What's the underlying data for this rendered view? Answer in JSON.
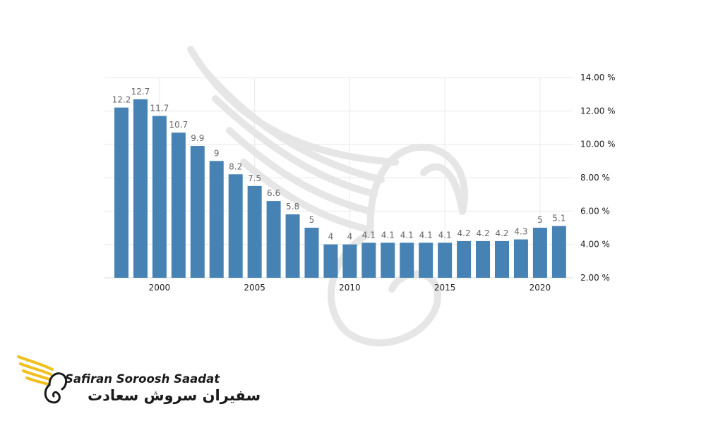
{
  "chart_data": {
    "type": "bar",
    "x": [
      1998,
      1999,
      2000,
      2001,
      2002,
      2003,
      2004,
      2005,
      2006,
      2007,
      2008,
      2009,
      2010,
      2011,
      2012,
      2013,
      2014,
      2015,
      2016,
      2017,
      2018,
      2019,
      2020,
      2021
    ],
    "values": [
      12.2,
      12.7,
      11.7,
      10.7,
      9.9,
      9,
      8.2,
      7.5,
      6.6,
      5.8,
      5,
      4,
      4,
      4.1,
      4.1,
      4.1,
      4.1,
      4.1,
      4.2,
      4.2,
      4.2,
      4.3,
      5,
      5.1
    ],
    "data_labels": [
      "12.2",
      "12.7",
      "11.7",
      "10.7",
      "9.9",
      "9",
      "8.2",
      "7.5",
      "6.6",
      "5.8",
      "5",
      "4",
      "4",
      "4.1",
      "4.1",
      "4.1",
      "4.1",
      "4.1",
      "4.2",
      "4.2",
      "4.2",
      "4.3",
      "5",
      "5.1"
    ],
    "x_ticks": [
      {
        "year": 2000,
        "label": "2000"
      },
      {
        "year": 2005,
        "label": "2005"
      },
      {
        "year": 2010,
        "label": "2010"
      },
      {
        "year": 2015,
        "label": "2015"
      },
      {
        "year": 2020,
        "label": "2020"
      }
    ],
    "y_ticks": [
      {
        "value": 2,
        "label": "2.00 %"
      },
      {
        "value": 4,
        "label": "4.00 %"
      },
      {
        "value": 6,
        "label": "6.00 %"
      },
      {
        "value": 8,
        "label": "8.00 %"
      },
      {
        "value": 10,
        "label": "10.00 %"
      },
      {
        "value": 12,
        "label": "12.00 %"
      },
      {
        "value": 14,
        "label": "14.00 %"
      }
    ],
    "ylim": [
      2,
      14
    ],
    "y_axis_position": "right",
    "grid": true,
    "bar_color": "#4682b4",
    "title": "",
    "xlabel": "",
    "ylabel": ""
  },
  "logo": {
    "name_latin": "Safiran Soroosh Saadat",
    "name_persian": "سفیران سروش سعادت",
    "accent_color": "#f0c020"
  }
}
